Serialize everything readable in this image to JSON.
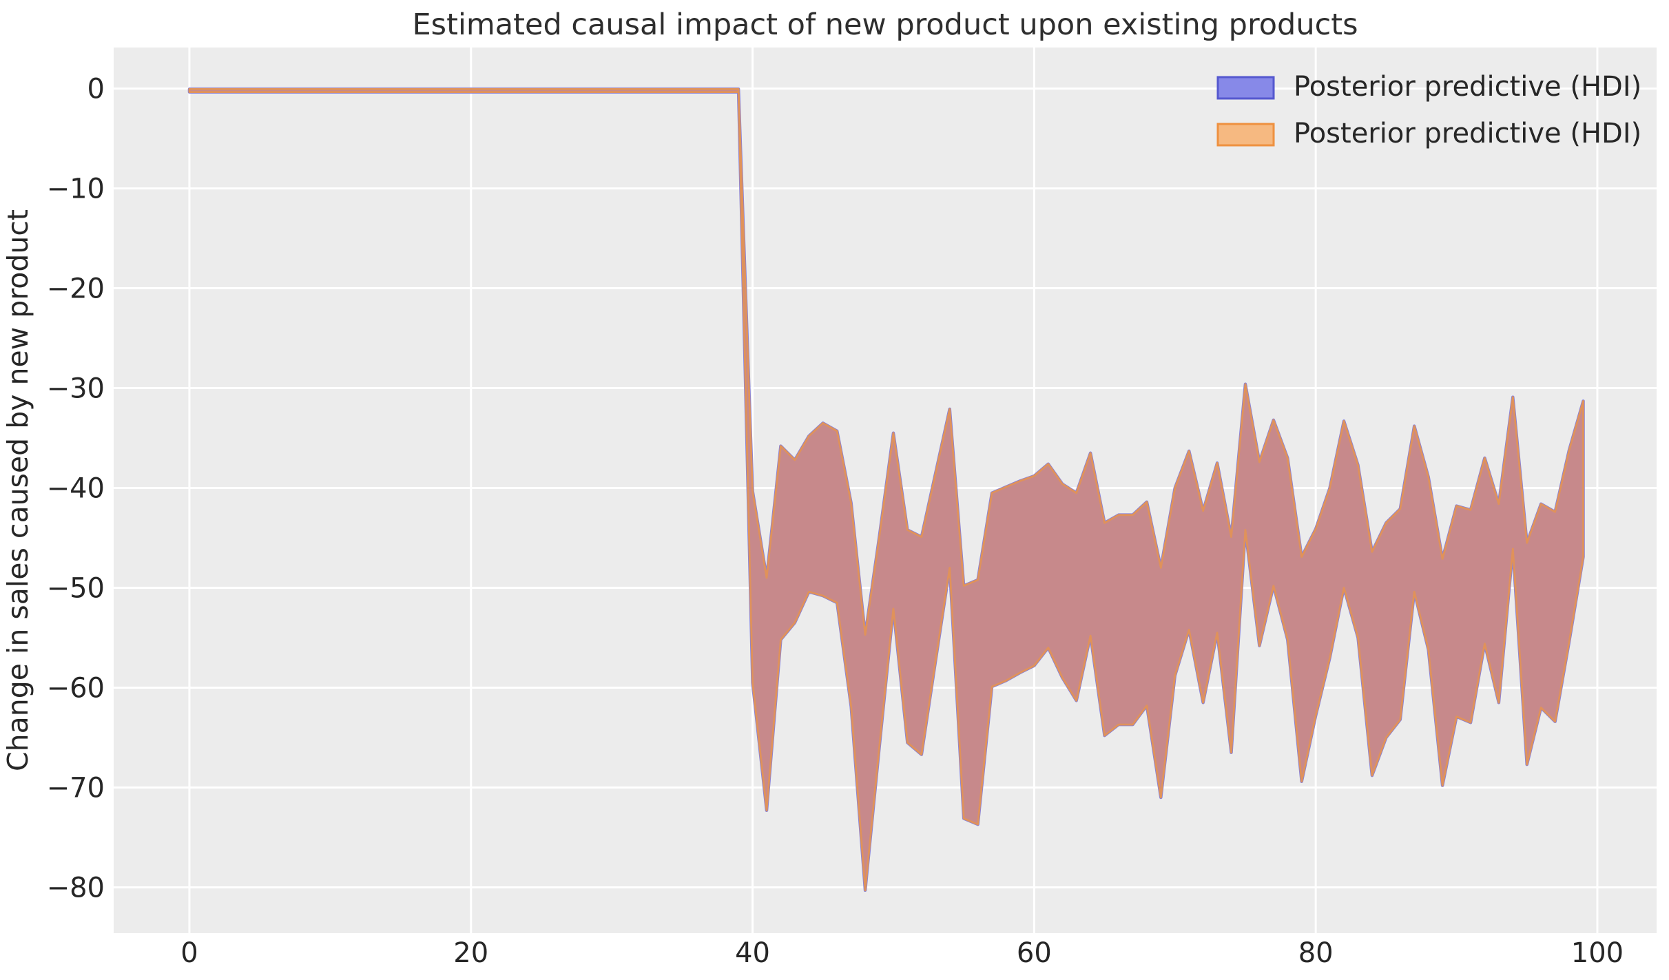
{
  "colors": {
    "figure_bg": "#ffffff",
    "plot_bg": "#ececec",
    "grid": "#ffffff",
    "band_fill": "#c7898b",
    "band_edge_orange": "#e0925a",
    "band_edge_blue": "#8781d8",
    "text": "#262626"
  },
  "legend": {
    "position": "upper right",
    "frame": false,
    "items": [
      {
        "label": "Posterior predictive (HDI)",
        "fill": "#8789e8",
        "border": "#5558cf"
      },
      {
        "label": "Posterior predictive (HDI)",
        "fill": "#f6b981",
        "border": "#ee9140"
      }
    ]
  },
  "chart_data": {
    "type": "area",
    "title": "Estimated causal impact of new product upon existing products",
    "xlabel": "",
    "ylabel": "Change in sales caused by new product",
    "grid": true,
    "legend_position": "upper right",
    "xlim": [
      -5.38,
      104.21
    ],
    "ylim": [
      -84.59,
      4.11
    ],
    "xticks": [
      {
        "label": "0",
        "value": 0
      },
      {
        "label": "20",
        "value": 20
      },
      {
        "label": "40",
        "value": 40
      },
      {
        "label": "60",
        "value": 60
      },
      {
        "label": "80",
        "value": 80
      },
      {
        "label": "100",
        "value": 100
      }
    ],
    "yticks": [
      {
        "label": "0",
        "value": 0
      },
      {
        "label": "−10",
        "value": -10
      },
      {
        "label": "−20",
        "value": -20
      },
      {
        "label": "−30",
        "value": -30
      },
      {
        "label": "−40",
        "value": -40
      },
      {
        "label": "−50",
        "value": -50
      },
      {
        "label": "−60",
        "value": -60
      },
      {
        "label": "−70",
        "value": -70
      },
      {
        "label": "−80",
        "value": -80
      }
    ],
    "series": [
      {
        "name": "Posterior predictive (HDI)",
        "color": "#8789e8",
        "note": "blue HDI band, coincident with orange band"
      },
      {
        "name": "Posterior predictive (HDI)",
        "color": "#f6b981",
        "note": "orange HDI band drawn on top"
      }
    ],
    "x": [
      0,
      1,
      2,
      3,
      4,
      5,
      6,
      7,
      8,
      9,
      10,
      11,
      12,
      13,
      14,
      15,
      16,
      17,
      18,
      19,
      20,
      21,
      22,
      23,
      24,
      25,
      26,
      27,
      28,
      29,
      30,
      31,
      32,
      33,
      34,
      35,
      36,
      37,
      38,
      39,
      40,
      41,
      42,
      43,
      44,
      45,
      46,
      47,
      48,
      49,
      50,
      51,
      52,
      53,
      54,
      55,
      56,
      57,
      58,
      59,
      60,
      61,
      62,
      63,
      64,
      65,
      66,
      67,
      68,
      69,
      70,
      71,
      72,
      73,
      74,
      75,
      76,
      77,
      78,
      79,
      80,
      81,
      82,
      83,
      84,
      85,
      86,
      87,
      88,
      89,
      90,
      91,
      92,
      93,
      94,
      95,
      96,
      97,
      98,
      99
    ],
    "hdi_upper": [
      -0.05,
      -0.05,
      -0.05,
      -0.05,
      -0.05,
      -0.05,
      -0.05,
      -0.05,
      -0.05,
      -0.05,
      -0.05,
      -0.05,
      -0.05,
      -0.05,
      -0.05,
      -0.05,
      -0.05,
      -0.05,
      -0.05,
      -0.05,
      -0.05,
      -0.05,
      -0.05,
      -0.05,
      -0.05,
      -0.05,
      -0.05,
      -0.05,
      -0.05,
      -0.05,
      -0.05,
      -0.05,
      -0.05,
      -0.05,
      -0.05,
      -0.05,
      -0.05,
      -0.05,
      -0.05,
      -0.05,
      -40.3,
      -49.0,
      -35.8,
      -37.2,
      -34.8,
      -33.5,
      -34.3,
      -41.5,
      -54.7,
      -44.9,
      -34.5,
      -44.2,
      -44.9,
      -38.5,
      -32.1,
      -49.8,
      -49.2,
      -40.5,
      -39.9,
      -39.3,
      -38.8,
      -37.6,
      -39.6,
      -40.5,
      -36.5,
      -43.5,
      -42.7,
      -42.7,
      -41.4,
      -48.0,
      -40.0,
      -36.3,
      -42.3,
      -37.5,
      -44.9,
      -29.6,
      -37.4,
      -33.2,
      -37.0,
      -46.9,
      -44.1,
      -40.0,
      -33.3,
      -37.7,
      -46.4,
      -43.5,
      -42.1,
      -33.8,
      -38.9,
      -47.1,
      -41.8,
      -42.2,
      -37.0,
      -41.6,
      -30.9,
      -45.5,
      -41.6,
      -42.4,
      -36.2,
      -31.3
    ],
    "hdi_lower": [
      -0.35,
      -0.35,
      -0.35,
      -0.35,
      -0.35,
      -0.35,
      -0.35,
      -0.35,
      -0.35,
      -0.35,
      -0.35,
      -0.35,
      -0.35,
      -0.35,
      -0.35,
      -0.35,
      -0.35,
      -0.35,
      -0.35,
      -0.35,
      -0.35,
      -0.35,
      -0.35,
      -0.35,
      -0.35,
      -0.35,
      -0.35,
      -0.35,
      -0.35,
      -0.35,
      -0.35,
      -0.35,
      -0.35,
      -0.35,
      -0.35,
      -0.35,
      -0.35,
      -0.35,
      -0.35,
      -0.35,
      -59.5,
      -72.3,
      -55.2,
      -53.5,
      -50.4,
      -50.8,
      -51.5,
      -61.9,
      -80.3,
      -66.0,
      -52.1,
      -65.5,
      -66.7,
      -57.3,
      -48.0,
      -73.1,
      -73.7,
      -59.9,
      -59.3,
      -58.5,
      -57.8,
      -56.0,
      -59.0,
      -61.3,
      -54.8,
      -64.8,
      -63.7,
      -63.7,
      -61.8,
      -71.0,
      -58.8,
      -54.2,
      -61.5,
      -54.5,
      -66.5,
      -44.2,
      -55.8,
      -49.8,
      -55.2,
      -69.4,
      -62.8,
      -57.0,
      -50.0,
      -55.0,
      -68.8,
      -65.0,
      -63.2,
      -50.4,
      -56.2,
      -69.8,
      -62.9,
      -63.5,
      -55.6,
      -61.5,
      -46.1,
      -67.7,
      -62.0,
      -63.4,
      -55.4,
      -46.9
    ]
  }
}
